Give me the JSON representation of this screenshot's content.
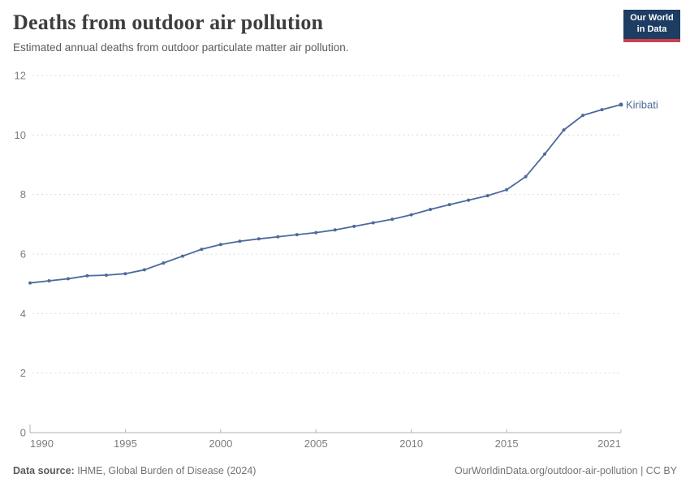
{
  "header": {
    "title": "Deaths from outdoor air pollution",
    "subtitle": "Estimated annual deaths from outdoor particulate matter air pollution.",
    "logo": {
      "line1": "Our World",
      "line2": "in Data"
    }
  },
  "chart_data": {
    "type": "line",
    "title": "Deaths from outdoor air pollution",
    "subtitle": "Estimated annual deaths from outdoor particulate matter air pollution.",
    "x": [
      1990,
      1991,
      1992,
      1993,
      1994,
      1995,
      1996,
      1997,
      1998,
      1999,
      2000,
      2001,
      2002,
      2003,
      2004,
      2005,
      2006,
      2007,
      2008,
      2009,
      2010,
      2011,
      2012,
      2013,
      2014,
      2015,
      2016,
      2017,
      2018,
      2019,
      2020,
      2021
    ],
    "series": [
      {
        "name": "Kiribati",
        "color": "#4c6a9c",
        "values": [
          5.03,
          5.1,
          5.17,
          5.27,
          5.29,
          5.34,
          5.47,
          5.7,
          5.93,
          6.16,
          6.32,
          6.43,
          6.51,
          6.58,
          6.65,
          6.72,
          6.81,
          6.93,
          7.05,
          7.17,
          7.32,
          7.5,
          7.66,
          7.81,
          7.96,
          8.16,
          8.6,
          9.36,
          10.17,
          10.66,
          10.85,
          11.02
        ]
      }
    ],
    "xlabel": "",
    "ylabel": "",
    "xlim": [
      1990,
      2021
    ],
    "ylim": [
      0,
      12
    ],
    "x_ticks": [
      1990,
      1995,
      2000,
      2005,
      2010,
      2015,
      2021
    ],
    "y_ticks": [
      0,
      2,
      4,
      6,
      8,
      10,
      12
    ],
    "grid": "horizontal-dashed",
    "legend_position": "end-of-line-label",
    "end_label": "Kiribati"
  },
  "footer": {
    "source_label": "Data source:",
    "source_text": " IHME, Global Burden of Disease (2024)",
    "right_text": "OurWorldinData.org/outdoor-air-pollution | CC BY"
  },
  "colors": {
    "line": "#4c6a9c",
    "logo_bg": "#1d3d63",
    "logo_stripe": "#cf3e4e",
    "gridline": "#dcdcdc",
    "axis": "#b0b0b0",
    "tick_label": "#7d7d7d",
    "title": "#3d3d3d",
    "subtitle": "#5b5b5b"
  }
}
